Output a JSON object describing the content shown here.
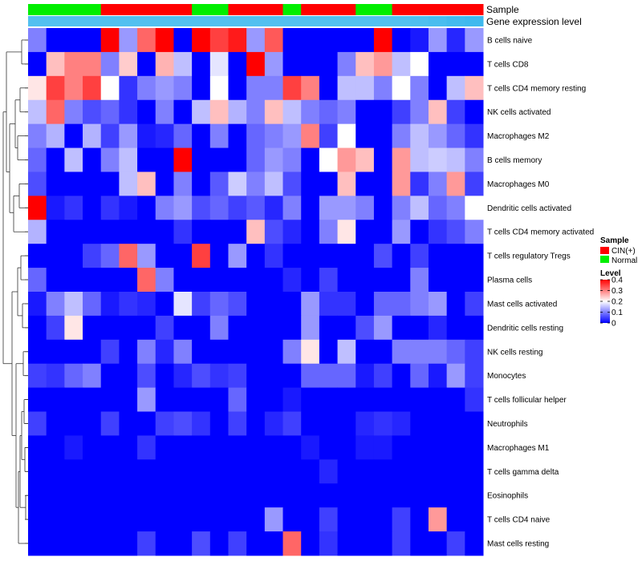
{
  "chart_data": {
    "type": "heatmap",
    "annotations": {
      "sample_label": "Sample",
      "expression_label": "Gene expression level"
    },
    "columns": {
      "count": 25,
      "sample_groups": [
        "Normal",
        "Normal",
        "Normal",
        "Normal",
        "CIN(+)",
        "CIN(+)",
        "CIN(+)",
        "CIN(+)",
        "CIN(+)",
        "Normal",
        "Normal",
        "CIN(+)",
        "CIN(+)",
        "CIN(+)",
        "Normal",
        "CIN(+)",
        "CIN(+)",
        "CIN(+)",
        "Normal",
        "Normal",
        "CIN(+)",
        "CIN(+)",
        "CIN(+)",
        "CIN(+)",
        "CIN(+)"
      ],
      "expression_level": [
        0.9,
        0.9,
        0.9,
        0.9,
        0.9,
        0.9,
        0.9,
        0.9,
        0.9,
        0.9,
        0.9,
        0.9,
        0.9,
        0.9,
        0.9,
        0.9,
        0.9,
        0.9,
        0.9,
        0.9,
        0.9,
        0.92,
        0.95,
        0.98,
        1.0
      ]
    },
    "rows": [
      "B cells naive",
      "T cells CD8",
      "T cells CD4 memory resting",
      "NK cells activated",
      "Macrophages M2",
      "B cells memory",
      "Macrophages M0",
      "Dendritic cells activated",
      "T cells CD4 memory activated",
      "T cells regulatory  Tregs",
      "Plasma cells",
      "Mast cells activated",
      "Dendritic cells resting",
      "NK cells resting",
      "Monocytes",
      "T cells follicular helper",
      "Neutrophils",
      "Macrophages M1",
      "T cells gamma delta",
      "Eosinophils",
      "T cells CD4 naive",
      "Mast cells resting"
    ],
    "values": [
      [
        0.1,
        0.0,
        0.0,
        0.0,
        0.4,
        0.12,
        0.32,
        0.4,
        0.0,
        0.4,
        0.35,
        0.38,
        0.12,
        0.33,
        0.0,
        0.0,
        0.0,
        0.0,
        0.0,
        0.4,
        0.0,
        0.02,
        0.12,
        0.03,
        0.12
      ],
      [
        0.0,
        0.25,
        0.3,
        0.3,
        0.1,
        0.24,
        0.0,
        0.26,
        0.15,
        0.0,
        0.18,
        0.0,
        0.4,
        0.12,
        0.0,
        0.0,
        0.0,
        0.1,
        0.25,
        0.28,
        0.15,
        0.2,
        0.0,
        0.0,
        0.0
      ],
      [
        0.22,
        0.35,
        0.3,
        0.35,
        0.2,
        0.04,
        0.1,
        0.12,
        0.1,
        0.0,
        0.2,
        0.0,
        0.1,
        0.1,
        0.35,
        0.3,
        0.0,
        0.15,
        0.15,
        0.1,
        0.2,
        0.1,
        0.0,
        0.15,
        0.25
      ],
      [
        0.15,
        0.32,
        0.1,
        0.06,
        0.08,
        0.04,
        0.0,
        0.1,
        0.0,
        0.15,
        0.25,
        0.14,
        0.1,
        0.25,
        0.15,
        0.1,
        0.08,
        0.1,
        0.0,
        0.0,
        0.05,
        0.1,
        0.25,
        0.05,
        0.0
      ],
      [
        0.1,
        0.14,
        0.0,
        0.14,
        0.05,
        0.12,
        0.02,
        0.03,
        0.08,
        0.0,
        0.1,
        0.0,
        0.08,
        0.1,
        0.12,
        0.3,
        0.05,
        0.2,
        0.0,
        0.0,
        0.1,
        0.15,
        0.12,
        0.08,
        0.04
      ],
      [
        0.08,
        0.0,
        0.15,
        0.0,
        0.1,
        0.15,
        0.0,
        0.0,
        0.4,
        0.0,
        0.0,
        0.0,
        0.08,
        0.12,
        0.1,
        0.0,
        0.2,
        0.28,
        0.25,
        0.0,
        0.28,
        0.15,
        0.16,
        0.15,
        0.1
      ],
      [
        0.06,
        0.0,
        0.0,
        0.0,
        0.0,
        0.15,
        0.25,
        0.0,
        0.1,
        0.0,
        0.07,
        0.16,
        0.1,
        0.15,
        0.06,
        0.0,
        0.0,
        0.25,
        0.0,
        0.0,
        0.28,
        0.04,
        0.1,
        0.28,
        0.05
      ],
      [
        0.4,
        0.02,
        0.04,
        0.0,
        0.04,
        0.02,
        0.0,
        0.1,
        0.12,
        0.06,
        0.08,
        0.05,
        0.07,
        0.03,
        0.1,
        0.0,
        0.12,
        0.12,
        0.1,
        0.0,
        0.1,
        0.15,
        0.08,
        0.1,
        0.2
      ],
      [
        0.14,
        0.0,
        0.0,
        0.0,
        0.0,
        0.0,
        0.0,
        0.0,
        0.04,
        0.0,
        0.0,
        0.0,
        0.25,
        0.06,
        0.03,
        0.0,
        0.1,
        0.22,
        0.0,
        0.0,
        0.12,
        0.0,
        0.04,
        0.06,
        0.1
      ],
      [
        0.0,
        0.0,
        0.0,
        0.05,
        0.08,
        0.32,
        0.12,
        0.0,
        0.0,
        0.35,
        0.0,
        0.12,
        0.0,
        0.04,
        0.0,
        0.0,
        0.0,
        0.0,
        0.0,
        0.06,
        0.0,
        0.05,
        0.0,
        0.0,
        0.0
      ],
      [
        0.08,
        0.0,
        0.0,
        0.0,
        0.0,
        0.0,
        0.32,
        0.1,
        0.0,
        0.0,
        0.0,
        0.0,
        0.0,
        0.0,
        0.03,
        0.0,
        0.05,
        0.0,
        0.0,
        0.0,
        0.0,
        0.1,
        0.0,
        0.0,
        0.0
      ],
      [
        0.02,
        0.1,
        0.15,
        0.08,
        0.02,
        0.04,
        0.03,
        0.0,
        0.18,
        0.05,
        0.08,
        0.06,
        0.0,
        0.0,
        0.0,
        0.12,
        0.04,
        0.04,
        0.0,
        0.08,
        0.08,
        0.1,
        0.12,
        0.0,
        0.05
      ],
      [
        0.0,
        0.05,
        0.22,
        0.0,
        0.0,
        0.0,
        0.0,
        0.05,
        0.0,
        0.0,
        0.1,
        0.0,
        0.0,
        0.0,
        0.0,
        0.12,
        0.0,
        0.0,
        0.06,
        0.12,
        0.0,
        0.0,
        0.03,
        0.0,
        0.0
      ],
      [
        0.0,
        0.0,
        0.0,
        0.0,
        0.05,
        0.0,
        0.1,
        0.03,
        0.1,
        0.0,
        0.0,
        0.0,
        0.0,
        0.0,
        0.1,
        0.22,
        0.0,
        0.15,
        0.0,
        0.0,
        0.1,
        0.1,
        0.1,
        0.08,
        0.05
      ],
      [
        0.05,
        0.04,
        0.08,
        0.1,
        0.0,
        0.0,
        0.06,
        0.0,
        0.03,
        0.06,
        0.04,
        0.05,
        0.0,
        0.0,
        0.0,
        0.08,
        0.08,
        0.08,
        0.02,
        0.05,
        0.0,
        0.08,
        0.02,
        0.12,
        0.05
      ],
      [
        0.0,
        0.0,
        0.0,
        0.0,
        0.0,
        0.0,
        0.12,
        0.0,
        0.0,
        0.0,
        0.0,
        0.08,
        0.0,
        0.0,
        0.02,
        0.0,
        0.0,
        0.0,
        0.0,
        0.0,
        0.0,
        0.0,
        0.0,
        0.0,
        0.04
      ],
      [
        0.05,
        0.0,
        0.0,
        0.0,
        0.05,
        0.0,
        0.0,
        0.05,
        0.06,
        0.04,
        0.0,
        0.05,
        0.0,
        0.03,
        0.05,
        0.0,
        0.0,
        0.0,
        0.03,
        0.04,
        0.03,
        0.0,
        0.0,
        0.0,
        0.0
      ],
      [
        0.0,
        0.0,
        0.02,
        0.0,
        0.0,
        0.0,
        0.04,
        0.0,
        0.0,
        0.0,
        0.0,
        0.0,
        0.0,
        0.0,
        0.0,
        0.02,
        0.0,
        0.0,
        0.02,
        0.02,
        0.0,
        0.0,
        0.0,
        0.0,
        0.0
      ],
      [
        0.0,
        0.0,
        0.0,
        0.0,
        0.0,
        0.0,
        0.0,
        0.0,
        0.0,
        0.0,
        0.0,
        0.0,
        0.0,
        0.0,
        0.0,
        0.0,
        0.03,
        0.0,
        0.0,
        0.0,
        0.0,
        0.0,
        0.0,
        0.0,
        0.0
      ],
      [
        0.0,
        0.0,
        0.0,
        0.0,
        0.0,
        0.0,
        0.0,
        0.0,
        0.0,
        0.0,
        0.0,
        0.0,
        0.0,
        0.0,
        0.0,
        0.0,
        0.0,
        0.0,
        0.0,
        0.0,
        0.0,
        0.0,
        0.0,
        0.0,
        0.0
      ],
      [
        0.0,
        0.0,
        0.0,
        0.0,
        0.0,
        0.0,
        0.0,
        0.0,
        0.0,
        0.0,
        0.0,
        0.0,
        0.0,
        0.12,
        0.0,
        0.0,
        0.05,
        0.0,
        0.0,
        0.0,
        0.05,
        0.0,
        0.28,
        0.0,
        0.0
      ],
      [
        0.0,
        0.0,
        0.0,
        0.0,
        0.0,
        0.0,
        0.05,
        0.0,
        0.0,
        0.06,
        0.0,
        0.05,
        0.0,
        0.0,
        0.32,
        0.0,
        0.04,
        0.0,
        0.0,
        0.0,
        0.05,
        0.0,
        0.0,
        0.05,
        0.0
      ]
    ],
    "color_scale": {
      "low": "#0000ff",
      "mid": "#ffffff",
      "high": "#ff0000",
      "min": 0,
      "mid_value": 0.2,
      "max": 0.4
    },
    "legend": {
      "placement": "right",
      "sample": {
        "title": "Sample",
        "entries": [
          {
            "label": "CIN(+)",
            "color": "#ff0000"
          },
          {
            "label": "Normal",
            "color": "#00ee00"
          }
        ]
      },
      "level": {
        "title": "Level",
        "ticks": [
          {
            "value": 0.4,
            "label": "0.4"
          },
          {
            "value": 0.3,
            "label": "0.3"
          },
          {
            "value": 0.2,
            "label": "0.2"
          },
          {
            "value": 0.1,
            "label": "0.1"
          },
          {
            "value": 0,
            "label": "0"
          }
        ]
      }
    },
    "group_colors": {
      "CIN(+)": "#ff0000",
      "Normal": "#00ee00"
    },
    "expression_colors": {
      "low": "#ffffff",
      "high": "#3fb9ee"
    }
  }
}
